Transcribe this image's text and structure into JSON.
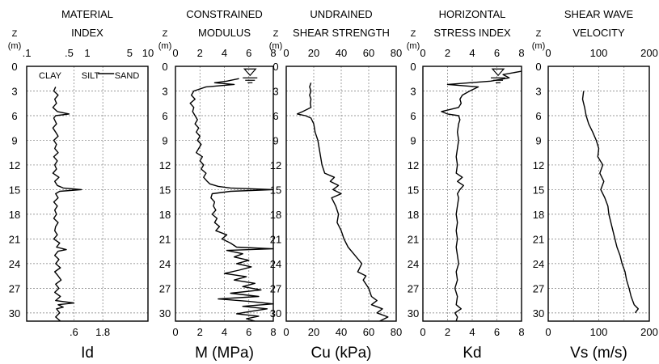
{
  "depth_axis": {
    "label_top": "Z",
    "label_unit": "(m)",
    "ticks": [
      0,
      3,
      6,
      9,
      12,
      15,
      18,
      21,
      24,
      27,
      30
    ],
    "range": [
      0,
      31
    ]
  },
  "water_table_depth": 1.5,
  "chart_data": [
    {
      "id": "id",
      "type": "line",
      "title": [
        "MATERIAL",
        "INDEX"
      ],
      "xlabel": "Id",
      "x_scale": "log",
      "xlim": [
        0.1,
        10
      ],
      "top_ticks": [
        {
          "v": 0.1,
          "label": ".1"
        },
        {
          "v": 0.5,
          "label": ".5"
        },
        {
          "v": 1,
          "label": "1"
        },
        {
          "v": 5,
          "label": "5"
        },
        {
          "v": 10,
          "label": "10"
        }
      ],
      "bottom_ticks": [
        {
          "v": 0.6,
          "label": ".6"
        },
        {
          "v": 1.8,
          "label": "1.8"
        }
      ],
      "v_grid": [
        0.6,
        1.8
      ],
      "soil_labels": [
        "CLAY",
        "SILT",
        "SAND"
      ],
      "series": [
        {
          "z": [
            2.5,
            3,
            3.5,
            4,
            4.5,
            5,
            5.5,
            5.8,
            6,
            6.3,
            7,
            7.5,
            8,
            8.5,
            9,
            9.5,
            10,
            10.5,
            11,
            11.5,
            12,
            12.5,
            13,
            13.5,
            14,
            14.5,
            14.8,
            15,
            15.2,
            15.5,
            16,
            16.5,
            17,
            17.5,
            18,
            18.5,
            19,
            19.5,
            20,
            20.5,
            21,
            21.5,
            22,
            22.3,
            22.5,
            23,
            23.5,
            24,
            24.5,
            25,
            25.5,
            26,
            26.5,
            27,
            27.5,
            28,
            28.5,
            28.8,
            29,
            29.3,
            29.5,
            30,
            30.5,
            31
          ],
          "x": [
            0.3,
            0.28,
            0.33,
            0.29,
            0.31,
            0.27,
            0.32,
            0.5,
            0.3,
            0.28,
            0.31,
            0.27,
            0.3,
            0.33,
            0.28,
            0.31,
            0.29,
            0.33,
            0.28,
            0.32,
            0.29,
            0.31,
            0.27,
            0.34,
            0.29,
            0.32,
            0.4,
            0.8,
            0.35,
            0.3,
            0.33,
            0.28,
            0.32,
            0.29,
            0.31,
            0.28,
            0.33,
            0.3,
            0.29,
            0.32,
            0.28,
            0.35,
            0.31,
            0.45,
            0.33,
            0.29,
            0.34,
            0.3,
            0.36,
            0.29,
            0.33,
            0.37,
            0.3,
            0.34,
            0.29,
            0.36,
            0.3,
            0.6,
            0.33,
            0.4,
            0.31,
            0.35,
            0.3,
            0.36
          ]
        }
      ]
    },
    {
      "id": "m",
      "type": "line",
      "title": [
        "CONSTRAINED",
        "MODULUS"
      ],
      "xlabel": "M (MPa)",
      "x_scale": "linear",
      "xlim": [
        0,
        8
      ],
      "top_ticks": [
        {
          "v": 0,
          "label": "0"
        },
        {
          "v": 2,
          "label": "2"
        },
        {
          "v": 4,
          "label": "4"
        },
        {
          "v": 6,
          "label": "6"
        },
        {
          "v": 8,
          "label": "8"
        }
      ],
      "bottom_ticks": [
        {
          "v": 0,
          "label": "0"
        },
        {
          "v": 2,
          "label": "2"
        },
        {
          "v": 4,
          "label": "4"
        },
        {
          "v": 6,
          "label": "6"
        },
        {
          "v": 8,
          "label": "8"
        }
      ],
      "v_grid": [
        2,
        4,
        6
      ],
      "series": [
        {
          "z": [
            1.5,
            1.8,
            2,
            2.2,
            2.5,
            3,
            3.5,
            4,
            4.5,
            5,
            5.5,
            6,
            6.5,
            7,
            7.5,
            8,
            8.5,
            9,
            9.5,
            10,
            10.5,
            11,
            11.5,
            12,
            12.5,
            13,
            13.5,
            14,
            14.3,
            14.6,
            14.8,
            15,
            15.2,
            15.5,
            16,
            16.5,
            17,
            17.5,
            18,
            18.5,
            19,
            19.5,
            20,
            20.5,
            21,
            21.5,
            22,
            22.2,
            22.4,
            22.8,
            23.2,
            23.6,
            24,
            24.4,
            24.8,
            25.2,
            25.6,
            26,
            26.4,
            26.8,
            27.2,
            27.6,
            28,
            28.3,
            28.6,
            28.9,
            29.2,
            29.5,
            29.8,
            30.1,
            30.4,
            30.7,
            31
          ],
          "x": [
            5.2,
            4.2,
            3.2,
            4.8,
            2.5,
            1.5,
            1.3,
            1.6,
            1.2,
            1.5,
            1.4,
            1.6,
            1.8,
            1.6,
            1.9,
            1.7,
            2.0,
            1.8,
            2.1,
            1.9,
            1.7,
            2.2,
            2.0,
            2.3,
            2.1,
            2.5,
            2.3,
            2.6,
            2.8,
            3.5,
            4.5,
            8.0,
            4.5,
            3.0,
            2.9,
            3.2,
            3.1,
            3.3,
            3.0,
            3.4,
            3.2,
            3.6,
            3.3,
            4.2,
            3.8,
            4.5,
            5.0,
            8.0,
            4.2,
            5.5,
            4.8,
            6.0,
            5.0,
            6.2,
            5.2,
            4.0,
            5.8,
            4.8,
            6.5,
            5.5,
            7.0,
            4.5,
            6.8,
            3.5,
            6.0,
            8.0,
            5.5,
            7.5,
            6.2,
            5.0,
            6.8,
            5.8,
            6.5
          ]
        }
      ]
    },
    {
      "id": "cu",
      "type": "line",
      "title": [
        "UNDRAINED",
        "SHEAR STRENGTH"
      ],
      "xlabel": "Cu (kPa)",
      "x_scale": "linear",
      "xlim": [
        0,
        80
      ],
      "top_ticks": [
        {
          "v": 0,
          "label": "0"
        },
        {
          "v": 20,
          "label": "20"
        },
        {
          "v": 40,
          "label": "40"
        },
        {
          "v": 60,
          "label": "60"
        },
        {
          "v": 80,
          "label": "80"
        }
      ],
      "bottom_ticks": [
        {
          "v": 0,
          "label": "0"
        },
        {
          "v": 20,
          "label": "20"
        },
        {
          "v": 40,
          "label": "40"
        },
        {
          "v": 60,
          "label": "60"
        },
        {
          "v": 80,
          "label": "80"
        }
      ],
      "v_grid": [
        20,
        40,
        60
      ],
      "series": [
        {
          "z": [
            2,
            2.5,
            3,
            3.5,
            4,
            4.5,
            5,
            5.5,
            5.8,
            6,
            6.3,
            7,
            8,
            9,
            10,
            11,
            12,
            13,
            13.5,
            14,
            14.5,
            15,
            15.5,
            16,
            17,
            18,
            19,
            20,
            21,
            22,
            23,
            24,
            25,
            25.5,
            26,
            27,
            28,
            28.5,
            29,
            29.5,
            30,
            30.5,
            31
          ],
          "x": [
            18,
            17,
            18,
            17,
            18,
            17.5,
            18,
            12,
            8,
            14,
            18,
            20,
            21,
            23,
            24,
            25,
            26,
            28,
            35,
            32,
            38,
            34,
            40,
            33,
            36,
            38,
            37,
            40,
            42,
            45,
            50,
            55,
            52,
            58,
            56,
            60,
            62,
            66,
            62,
            70,
            66,
            74,
            68
          ]
        }
      ]
    },
    {
      "id": "kd",
      "type": "line",
      "title": [
        "HORIZONTAL",
        "STRESS INDEX"
      ],
      "xlabel": "Kd",
      "x_scale": "linear",
      "xlim": [
        0,
        8
      ],
      "top_ticks": [
        {
          "v": 0,
          "label": "0"
        },
        {
          "v": 2,
          "label": "2"
        },
        {
          "v": 4,
          "label": "4"
        },
        {
          "v": 6,
          "label": "6"
        },
        {
          "v": 8,
          "label": "8"
        }
      ],
      "bottom_ticks": [
        {
          "v": 0,
          "label": "0"
        },
        {
          "v": 2,
          "label": "2"
        },
        {
          "v": 4,
          "label": "4"
        },
        {
          "v": 6,
          "label": "6"
        },
        {
          "v": 8,
          "label": "8"
        }
      ],
      "v_grid": [
        2,
        4,
        6
      ],
      "series": [
        {
          "z": [
            0.6,
            1.0,
            1.4,
            1.8,
            2.2,
            2.5,
            3,
            3.5,
            4,
            4.5,
            5,
            5.5,
            5.8,
            6,
            6.5,
            7,
            8,
            9,
            10,
            11,
            12,
            13,
            13.5,
            14,
            14.5,
            15,
            15.5,
            16,
            17,
            18,
            19,
            20,
            21,
            22,
            23,
            24,
            25,
            26,
            27,
            28,
            29,
            29.5,
            30,
            30.5,
            31
          ],
          "x": [
            8,
            6.5,
            7,
            5.5,
            2.0,
            4.5,
            3.8,
            3.2,
            3.0,
            3.1,
            2.9,
            1.5,
            2.0,
            2.9,
            3.0,
            2.9,
            2.8,
            2.9,
            2.8,
            2.7,
            2.8,
            2.7,
            3.2,
            2.8,
            3.3,
            3.0,
            2.8,
            2.9,
            2.8,
            2.7,
            2.8,
            2.7,
            2.8,
            2.7,
            2.8,
            2.9,
            2.7,
            2.8,
            2.6,
            2.8,
            2.7,
            3.1,
            2.6,
            2.8,
            2.7
          ]
        }
      ]
    },
    {
      "id": "vs",
      "type": "line",
      "title": [
        "SHEAR WAVE",
        "VELOCITY"
      ],
      "xlabel": "Vs (m/s)",
      "x_scale": "linear",
      "xlim": [
        0,
        200
      ],
      "top_ticks": [
        {
          "v": 0,
          "label": "0"
        },
        {
          "v": 100,
          "label": "100"
        },
        {
          "v": 200,
          "label": "200"
        }
      ],
      "bottom_ticks": [
        {
          "v": 0,
          "label": "0"
        },
        {
          "v": 100,
          "label": "100"
        },
        {
          "v": 200,
          "label": "200"
        }
      ],
      "v_grid": [
        50,
        100,
        150
      ],
      "series": [
        {
          "z": [
            3,
            4,
            5,
            6,
            7,
            8,
            9,
            10,
            11,
            12,
            13,
            14,
            15,
            16,
            17,
            18,
            19,
            20,
            21,
            22,
            23,
            24,
            25,
            26,
            27,
            28,
            29,
            29.5,
            30
          ],
          "x": [
            70,
            68,
            72,
            75,
            80,
            88,
            95,
            100,
            98,
            108,
            102,
            110,
            104,
            112,
            118,
            120,
            124,
            128,
            132,
            136,
            142,
            146,
            152,
            155,
            160,
            164,
            170,
            178,
            172
          ]
        }
      ]
    }
  ]
}
